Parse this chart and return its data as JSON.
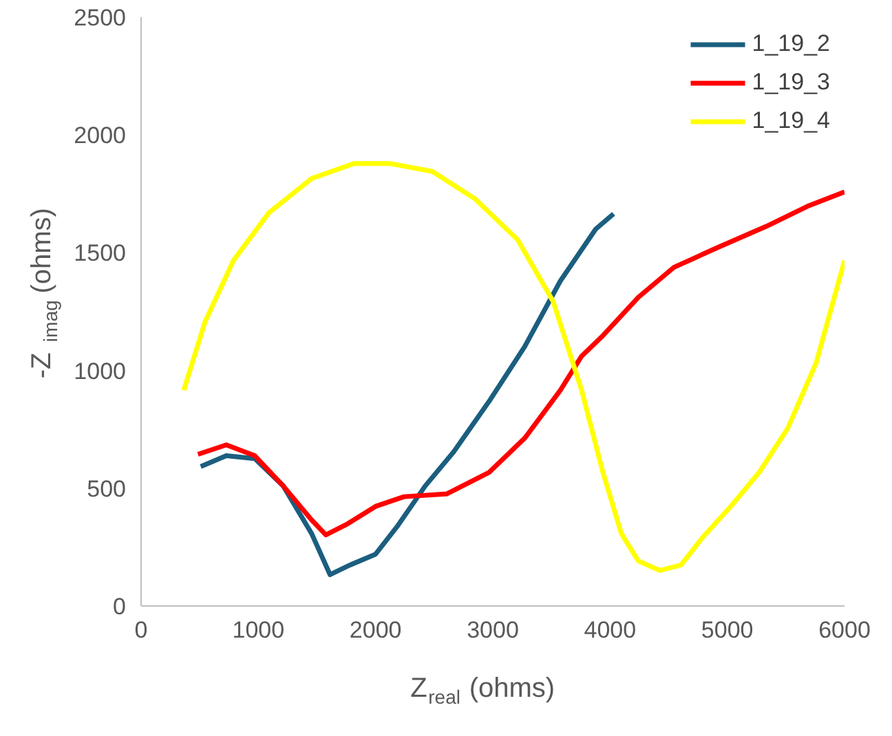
{
  "chart_data": {
    "type": "line",
    "xlabel": "Z$_{real}$ (ohms)",
    "ylabel": "-Z$_{imag}$ (ohms)",
    "xlim": [
      0,
      6000
    ],
    "xticks": [
      0,
      1000,
      2000,
      3000,
      4000,
      5000,
      6000
    ],
    "ylim": [
      0,
      2500
    ],
    "yticks": [
      0,
      500,
      1000,
      1500,
      2000,
      2500
    ],
    "grid": false,
    "legend": "top right",
    "marker": "none",
    "line_style": "solid",
    "series": [
      {
        "name": "1_19_2",
        "color": "#1b5e7f",
        "x": [
          509,
          727,
          970,
          1212,
          1455,
          1612,
          1782,
          2000,
          2182,
          2424,
          2667,
          2970,
          3273,
          3576,
          3879,
          4030
        ],
        "values": [
          592,
          638,
          626,
          510,
          307,
          133,
          174,
          220,
          336,
          510,
          655,
          870,
          1102,
          1380,
          1601,
          1665
        ]
      },
      {
        "name": "1_19_3",
        "color": "#ff0000",
        "x": [
          485,
          727,
          970,
          1212,
          1455,
          1576,
          1758,
          2000,
          2242,
          2606,
          2970,
          3273,
          3576,
          3758,
          3939,
          4242,
          4545,
          4909,
          5333,
          5697,
          6000
        ],
        "values": [
          644,
          684,
          638,
          510,
          365,
          302,
          348,
          423,
          464,
          476,
          568,
          713,
          916,
          1061,
          1148,
          1311,
          1438,
          1520,
          1612,
          1700,
          1758
        ]
      },
      {
        "name": "1_19_4",
        "color": "#ffff00",
        "x": [
          364,
          545,
          788,
          1091,
          1455,
          1818,
          2121,
          2485,
          2848,
          3212,
          3515,
          3758,
          3939,
          4097,
          4242,
          4424,
          4606,
          4788,
          5030,
          5273,
          5515,
          5758,
          6000
        ],
        "values": [
          916,
          1206,
          1467,
          1670,
          1815,
          1879,
          1879,
          1845,
          1729,
          1555,
          1293,
          916,
          568,
          307,
          191,
          151,
          174,
          290,
          423,
          568,
          754,
          1032,
          1467
        ]
      }
    ]
  }
}
